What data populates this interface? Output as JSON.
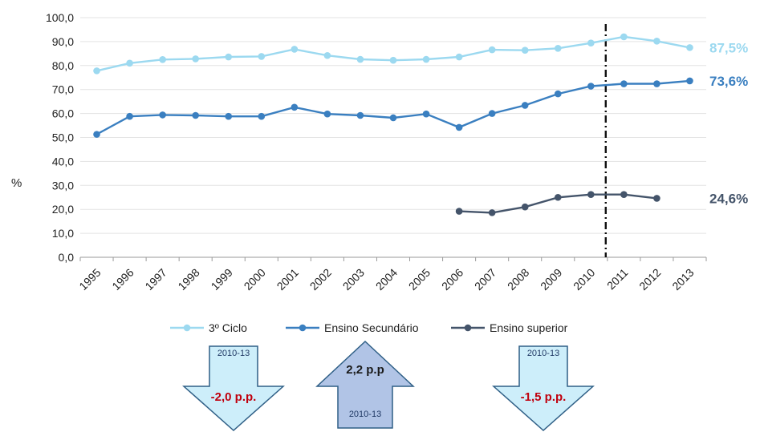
{
  "chart_data": {
    "type": "line",
    "ylabel": "%",
    "ylim": [
      0,
      100
    ],
    "yticks": [
      "0,0",
      "10,0",
      "20,0",
      "30,0",
      "40,0",
      "50,0",
      "60,0",
      "70,0",
      "80,0",
      "90,0",
      "100,0"
    ],
    "categories": [
      "1995",
      "1996",
      "1997",
      "1998",
      "1999",
      "2000",
      "2001",
      "2002",
      "2003",
      "2004",
      "2005",
      "2006",
      "2007",
      "2008",
      "2009",
      "2010",
      "2011",
      "2012",
      "2013"
    ],
    "series": [
      {
        "name": "3º Ciclo",
        "color": "#9cd9f0",
        "values": [
          77.8,
          81.0,
          82.5,
          82.8,
          83.6,
          83.8,
          86.8,
          84.2,
          82.6,
          82.2,
          82.6,
          83.6,
          86.6,
          86.4,
          87.2,
          89.4,
          92.0,
          90.2,
          87.5
        ],
        "end_label": "87,5%"
      },
      {
        "name": "Ensino Secundário",
        "color": "#3a7fc0",
        "values": [
          51.3,
          58.8,
          59.4,
          59.2,
          58.8,
          58.8,
          62.6,
          59.8,
          59.2,
          58.2,
          59.8,
          54.2,
          60.0,
          63.4,
          68.2,
          71.4,
          72.4,
          72.4,
          73.6
        ],
        "end_label": "73,6%"
      },
      {
        "name": "Ensino superior",
        "color": "#44546a",
        "values": [
          null,
          null,
          null,
          null,
          null,
          null,
          null,
          null,
          null,
          null,
          null,
          19.2,
          18.6,
          21.0,
          25.0,
          26.2,
          26.2,
          24.6,
          null
        ],
        "end_label": "24,6%"
      }
    ],
    "vertical_marker_category": "2010",
    "legend_position": "bottom",
    "grid": true
  },
  "arrows": [
    {
      "direction": "down",
      "period": "2010-13",
      "change": "-2,0 p.p.",
      "change_color": "#c0000d",
      "fill": "#cdeefa"
    },
    {
      "direction": "up",
      "period": "2010-13",
      "change": "2,2 p.p",
      "change_color": "#1a1a1a",
      "fill": "#b1c4e6"
    },
    {
      "direction": "down",
      "period": "2010-13",
      "change": "-1,5 p.p.",
      "change_color": "#c0000d",
      "fill": "#cdeefa"
    }
  ]
}
